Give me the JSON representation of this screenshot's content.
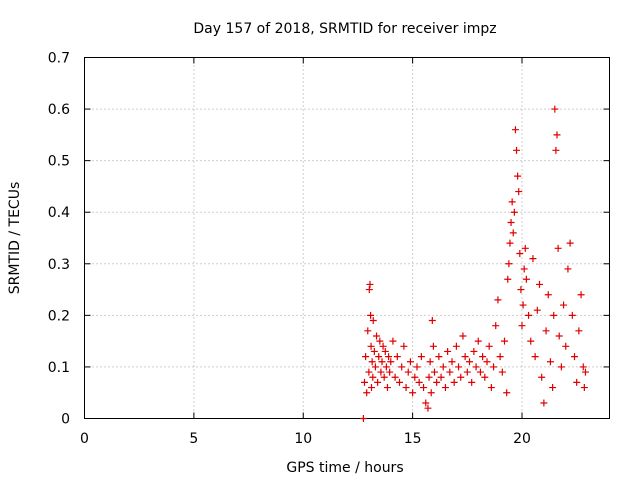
{
  "chart_data": {
    "type": "scatter",
    "title": "Day 157 of 2018, SRMTID for receiver impz",
    "xlabel": "GPS time / hours",
    "ylabel": "SRMTID / TECUs",
    "xlim": [
      0,
      24
    ],
    "ylim": [
      0,
      0.7
    ],
    "grid": true,
    "marker": "+",
    "marker_color": "#e00000",
    "xticks": [
      0,
      5,
      10,
      15,
      20
    ],
    "yticks": [
      0,
      0.1,
      0.2,
      0.3,
      0.4,
      0.5,
      0.6,
      0.7
    ],
    "ytick_labels": [
      "0",
      "0.1",
      "0.2",
      "0.3",
      "0.4",
      "0.5",
      "0.6",
      "0.7"
    ],
    "series": [
      {
        "name": "SRMTID",
        "x": [
          12.75,
          12.8,
          12.85,
          12.9,
          12.95,
          13.0,
          13.02,
          13.05,
          13.08,
          13.1,
          13.12,
          13.15,
          13.18,
          13.2,
          13.25,
          13.3,
          13.35,
          13.4,
          13.45,
          13.5,
          13.55,
          13.6,
          13.65,
          13.7,
          13.75,
          13.8,
          13.85,
          13.9,
          13.95,
          14.0,
          14.1,
          14.2,
          14.3,
          14.4,
          14.5,
          14.6,
          14.7,
          14.8,
          14.9,
          15.0,
          15.1,
          15.2,
          15.3,
          15.4,
          15.5,
          15.6,
          15.7,
          15.75,
          15.8,
          15.85,
          15.9,
          15.95,
          16.0,
          16.1,
          16.2,
          16.3,
          16.4,
          16.5,
          16.6,
          16.7,
          16.8,
          16.9,
          17.0,
          17.1,
          17.2,
          17.3,
          17.4,
          17.5,
          17.6,
          17.7,
          17.8,
          17.9,
          18.0,
          18.1,
          18.2,
          18.3,
          18.4,
          18.5,
          18.6,
          18.7,
          18.8,
          18.9,
          19.0,
          19.1,
          19.2,
          19.3,
          19.35,
          19.4,
          19.45,
          19.5,
          19.55,
          19.6,
          19.65,
          19.7,
          19.75,
          19.8,
          19.85,
          19.9,
          19.95,
          20.0,
          20.05,
          20.1,
          20.15,
          20.2,
          20.3,
          20.4,
          20.5,
          20.6,
          20.7,
          20.8,
          20.9,
          21.0,
          21.1,
          21.2,
          21.3,
          21.4,
          21.45,
          21.5,
          21.55,
          21.6,
          21.65,
          21.7,
          21.8,
          21.9,
          22.0,
          22.1,
          22.2,
          22.3,
          22.4,
          22.5,
          22.6,
          22.7,
          22.8,
          22.85,
          22.9
        ],
        "y": [
          0.0,
          0.07,
          0.12,
          0.05,
          0.17,
          0.09,
          0.25,
          0.26,
          0.2,
          0.14,
          0.06,
          0.11,
          0.08,
          0.19,
          0.13,
          0.1,
          0.16,
          0.07,
          0.12,
          0.15,
          0.09,
          0.11,
          0.14,
          0.08,
          0.13,
          0.1,
          0.06,
          0.12,
          0.09,
          0.11,
          0.15,
          0.08,
          0.12,
          0.07,
          0.1,
          0.14,
          0.06,
          0.09,
          0.11,
          0.05,
          0.08,
          0.1,
          0.07,
          0.12,
          0.06,
          0.03,
          0.02,
          0.08,
          0.11,
          0.05,
          0.19,
          0.14,
          0.09,
          0.07,
          0.12,
          0.08,
          0.1,
          0.06,
          0.13,
          0.09,
          0.11,
          0.07,
          0.14,
          0.1,
          0.08,
          0.16,
          0.12,
          0.09,
          0.11,
          0.07,
          0.13,
          0.1,
          0.15,
          0.09,
          0.12,
          0.08,
          0.11,
          0.14,
          0.06,
          0.1,
          0.18,
          0.23,
          0.12,
          0.09,
          0.15,
          0.05,
          0.27,
          0.3,
          0.34,
          0.38,
          0.42,
          0.36,
          0.4,
          0.56,
          0.52,
          0.47,
          0.44,
          0.32,
          0.25,
          0.18,
          0.22,
          0.29,
          0.33,
          0.27,
          0.2,
          0.15,
          0.31,
          0.12,
          0.21,
          0.26,
          0.08,
          0.03,
          0.17,
          0.24,
          0.11,
          0.06,
          0.2,
          0.6,
          0.52,
          0.55,
          0.33,
          0.16,
          0.1,
          0.22,
          0.14,
          0.29,
          0.34,
          0.2,
          0.12,
          0.07,
          0.17,
          0.24,
          0.1,
          0.06,
          0.09
        ]
      }
    ]
  }
}
